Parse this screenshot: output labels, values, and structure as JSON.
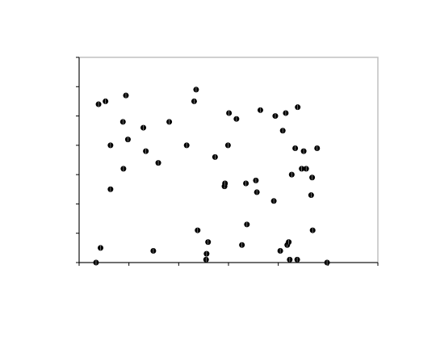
{
  "colors": {
    "background": "#ffffff",
    "plot_border": "#c0c0c0",
    "axis": "#000000",
    "marker_fill": "#000000",
    "marker_highlight": "#ffffff"
  },
  "chart_data": {
    "type": "scatter",
    "title": "",
    "xlabel": "",
    "ylabel": "",
    "xlim": [
      0,
      6
    ],
    "ylim": [
      0,
      7
    ],
    "x_ticks": [
      0,
      1,
      2,
      3,
      4,
      5,
      6
    ],
    "y_ticks": [
      0,
      1,
      2,
      3,
      4,
      5,
      6,
      7
    ],
    "tick_labels_shown": false,
    "grid": false,
    "legend": "none",
    "marker": "circle",
    "series": [
      {
        "points": [
          [
            0.39,
            5.4
          ],
          [
            0.53,
            5.5
          ],
          [
            0.94,
            5.7
          ],
          [
            0.88,
            4.8
          ],
          [
            0.63,
            4.0
          ],
          [
            0.98,
            4.2
          ],
          [
            1.29,
            4.6
          ],
          [
            1.34,
            3.8
          ],
          [
            1.59,
            3.4
          ],
          [
            1.81,
            4.8
          ],
          [
            0.89,
            3.2
          ],
          [
            0.63,
            2.5
          ],
          [
            0.43,
            0.5
          ],
          [
            0.34,
            0.0
          ],
          [
            1.49,
            0.4
          ],
          [
            2.16,
            4.0
          ],
          [
            2.31,
            5.5
          ],
          [
            2.35,
            5.9
          ],
          [
            2.38,
            1.1
          ],
          [
            2.59,
            0.7
          ],
          [
            2.56,
            0.3
          ],
          [
            2.55,
            0.1
          ],
          [
            2.73,
            3.6
          ],
          [
            2.92,
            2.6
          ],
          [
            2.93,
            2.7
          ],
          [
            2.99,
            4.0
          ],
          [
            3.01,
            5.1
          ],
          [
            3.16,
            4.9
          ],
          [
            3.27,
            0.6
          ],
          [
            3.37,
            1.3
          ],
          [
            3.35,
            2.7
          ],
          [
            3.55,
            2.8
          ],
          [
            3.57,
            2.4
          ],
          [
            3.64,
            5.2
          ],
          [
            3.91,
            2.1
          ],
          [
            3.94,
            5.0
          ],
          [
            4.09,
            4.5
          ],
          [
            4.04,
            0.4
          ],
          [
            4.15,
            5.1
          ],
          [
            4.18,
            0.6
          ],
          [
            4.21,
            0.7
          ],
          [
            4.23,
            0.1
          ],
          [
            4.27,
            3.0
          ],
          [
            4.34,
            3.9
          ],
          [
            4.39,
            5.3
          ],
          [
            4.38,
            0.1
          ],
          [
            4.47,
            3.2
          ],
          [
            4.56,
            3.2
          ],
          [
            4.51,
            3.8
          ],
          [
            4.68,
            2.9
          ],
          [
            4.66,
            2.3
          ],
          [
            4.69,
            1.1
          ],
          [
            4.78,
            3.9
          ],
          [
            4.98,
            0.0
          ]
        ]
      }
    ]
  }
}
